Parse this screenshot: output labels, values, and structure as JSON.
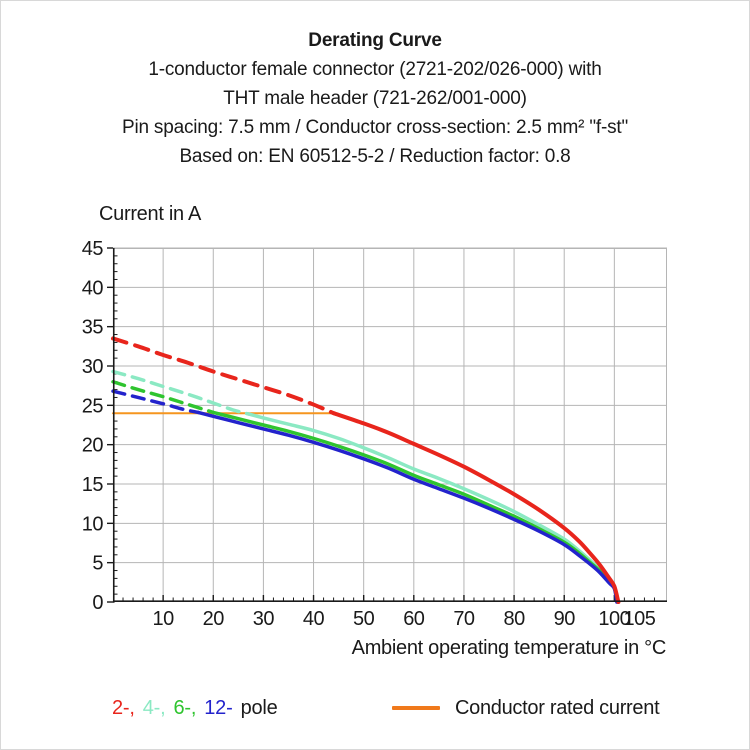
{
  "header": {
    "title": "Derating Curve",
    "subtitle1": "1-conductor female connector (2721-202/026-000) with",
    "subtitle2": "THT male header (721-262/001-000)",
    "subtitle3": "Pin spacing: 7.5 mm / Conductor cross-section: 2.5 mm² \"f-st\"",
    "subtitle4": "Based on: EN 60512-5-2 / Reduction factor: 0.8"
  },
  "chart_data": {
    "type": "line",
    "title": "Derating Curve",
    "xlabel": "Ambient operating temperature in °C",
    "ylabel": "Current in A",
    "xlim": [
      0,
      110.5
    ],
    "ylim": [
      0,
      45
    ],
    "grid": true,
    "grid_color": "#b5b5b5",
    "axis_color": "#1a1a1a",
    "x_gridlines": [
      10,
      20,
      30,
      40,
      50,
      60,
      70,
      80,
      90,
      100
    ],
    "y_gridlines": [
      5,
      10,
      15,
      20,
      25,
      30,
      35,
      40,
      45
    ],
    "x_minor_step": 2,
    "y_minor_step": 1,
    "x_tick_labels": [
      {
        "v": 10,
        "label": "10"
      },
      {
        "v": 20,
        "label": "20"
      },
      {
        "v": 30,
        "label": "30"
      },
      {
        "v": 40,
        "label": "40"
      },
      {
        "v": 50,
        "label": "50"
      },
      {
        "v": 60,
        "label": "60"
      },
      {
        "v": 70,
        "label": "70"
      },
      {
        "v": 80,
        "label": "80"
      },
      {
        "v": 90,
        "label": "90"
      },
      {
        "v": 100,
        "label": "100"
      },
      {
        "v": 105,
        "label": "105"
      }
    ],
    "y_ticks": [
      0,
      5,
      10,
      15,
      20,
      25,
      30,
      35,
      40,
      45
    ],
    "rated_current_A": 24,
    "note": "Curves dashed above conductor rated current (24 A), solid below",
    "series": [
      {
        "name": "2-pole",
        "color": "#E8251C",
        "dashed": [
          [
            0,
            33.5
          ],
          [
            5,
            32.5
          ],
          [
            10,
            31.4
          ],
          [
            15,
            30.4
          ],
          [
            20,
            29.3
          ],
          [
            25,
            28.3
          ],
          [
            30,
            27.3
          ],
          [
            35,
            26.3
          ],
          [
            40,
            25.1
          ],
          [
            44,
            24
          ]
        ],
        "solid": [
          [
            44,
            24
          ],
          [
            50,
            22.7
          ],
          [
            55,
            21.5
          ],
          [
            60,
            20.1
          ],
          [
            65,
            18.7
          ],
          [
            70,
            17.2
          ],
          [
            75,
            15.5
          ],
          [
            80,
            13.7
          ],
          [
            85,
            11.7
          ],
          [
            90,
            9.4
          ],
          [
            93,
            7.7
          ],
          [
            95,
            6.3
          ],
          [
            97,
            4.8
          ],
          [
            99,
            3
          ],
          [
            100,
            2
          ],
          [
            100.8,
            0
          ]
        ]
      },
      {
        "name": "4-pole",
        "color": "#8BE9C3",
        "dashed": [
          [
            0,
            29.3
          ],
          [
            5,
            28.4
          ],
          [
            10,
            27.4
          ],
          [
            15,
            26.4
          ],
          [
            20,
            25.3
          ],
          [
            24,
            24.4
          ],
          [
            27,
            23.9
          ]
        ],
        "solid": [
          [
            27,
            23.9
          ],
          [
            30,
            23.4
          ],
          [
            35,
            22.6
          ],
          [
            40,
            21.8
          ],
          [
            45,
            20.8
          ],
          [
            50,
            19.6
          ],
          [
            55,
            18.3
          ],
          [
            60,
            16.9
          ],
          [
            65,
            15.7
          ],
          [
            70,
            14.4
          ],
          [
            75,
            13
          ],
          [
            80,
            11.5
          ],
          [
            85,
            9.8
          ],
          [
            90,
            8
          ],
          [
            93,
            6.5
          ],
          [
            95,
            5.4
          ],
          [
            97,
            4.2
          ],
          [
            99,
            2.7
          ],
          [
            100,
            1.9
          ],
          [
            100.7,
            0
          ]
        ]
      },
      {
        "name": "6-pole",
        "color": "#2FC42F",
        "dashed": [
          [
            0,
            28
          ],
          [
            5,
            27
          ],
          [
            10,
            26.1
          ],
          [
            15,
            25.1
          ],
          [
            20,
            24.1
          ]
        ],
        "solid": [
          [
            20,
            24.1
          ],
          [
            25,
            23.3
          ],
          [
            30,
            22.5
          ],
          [
            35,
            21.7
          ],
          [
            40,
            20.8
          ],
          [
            45,
            19.8
          ],
          [
            50,
            18.7
          ],
          [
            55,
            17.5
          ],
          [
            60,
            16.1
          ],
          [
            65,
            14.9
          ],
          [
            70,
            13.7
          ],
          [
            75,
            12.3
          ],
          [
            80,
            10.9
          ],
          [
            85,
            9.3
          ],
          [
            90,
            7.6
          ],
          [
            93,
            6.2
          ],
          [
            95,
            5.1
          ],
          [
            97,
            4
          ],
          [
            99,
            2.5
          ],
          [
            100,
            1.8
          ],
          [
            100.6,
            0
          ]
        ]
      },
      {
        "name": "12-pole",
        "color": "#2323CC",
        "dashed": [
          [
            0,
            26.8
          ],
          [
            5,
            26
          ],
          [
            10,
            25.2
          ],
          [
            14,
            24.5
          ],
          [
            17,
            24.1
          ]
        ],
        "solid": [
          [
            17,
            24.1
          ],
          [
            20,
            23.6
          ],
          [
            25,
            22.8
          ],
          [
            30,
            22
          ],
          [
            35,
            21.2
          ],
          [
            40,
            20.3
          ],
          [
            45,
            19.3
          ],
          [
            50,
            18.2
          ],
          [
            55,
            17
          ],
          [
            60,
            15.6
          ],
          [
            65,
            14.4
          ],
          [
            70,
            13.2
          ],
          [
            75,
            11.9
          ],
          [
            80,
            10.5
          ],
          [
            85,
            9
          ],
          [
            90,
            7.3
          ],
          [
            93,
            5.9
          ],
          [
            95,
            4.9
          ],
          [
            97,
            3.8
          ],
          [
            99,
            2.4
          ],
          [
            100,
            1.7
          ],
          [
            100.5,
            0
          ]
        ]
      },
      {
        "name": "Conductor rated current",
        "color": "#F5951F",
        "solid": [
          [
            0,
            24
          ],
          [
            44.5,
            24
          ]
        ]
      }
    ]
  },
  "legend": {
    "pole_segments": [
      {
        "text": "2-,",
        "color": "#E8251C"
      },
      {
        "text": "4-,",
        "color": "#8BE9C3"
      },
      {
        "text": "6-,",
        "color": "#2FC42F"
      },
      {
        "text": "12-",
        "color": "#2323CC"
      },
      {
        "text": "pole",
        "color": "#1a1a1a"
      }
    ],
    "rated_label": "Conductor rated current",
    "rated_color": "#F0791B"
  }
}
